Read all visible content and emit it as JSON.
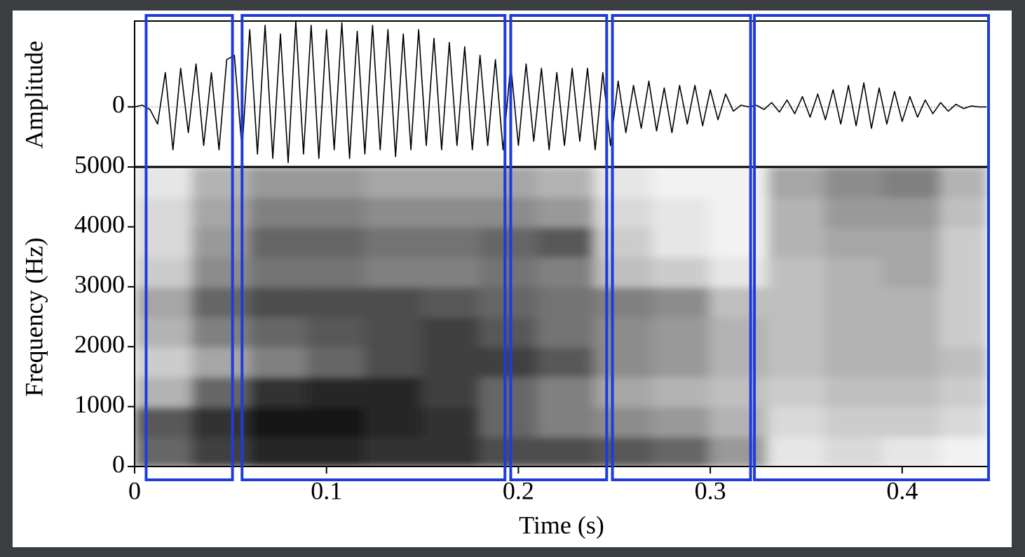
{
  "chart_data": [
    {
      "type": "line",
      "ylabel": "Amplitude",
      "color": "#000000",
      "xlim": [
        0,
        0.445
      ],
      "ylim": [
        -0.7,
        1
      ],
      "yticks": [
        0
      ],
      "x": [
        0,
        0.004,
        0.008,
        0.012,
        0.016,
        0.02,
        0.024,
        0.028,
        0.032,
        0.036,
        0.04,
        0.044,
        0.048,
        0.052,
        0.056,
        0.06,
        0.064,
        0.068,
        0.072,
        0.076,
        0.08,
        0.084,
        0.088,
        0.092,
        0.096,
        0.1,
        0.104,
        0.108,
        0.112,
        0.116,
        0.12,
        0.124,
        0.128,
        0.132,
        0.136,
        0.14,
        0.144,
        0.148,
        0.152,
        0.156,
        0.16,
        0.164,
        0.168,
        0.172,
        0.176,
        0.18,
        0.184,
        0.188,
        0.192,
        0.196,
        0.2,
        0.204,
        0.208,
        0.212,
        0.216,
        0.22,
        0.224,
        0.228,
        0.232,
        0.236,
        0.24,
        0.244,
        0.248,
        0.252,
        0.256,
        0.26,
        0.264,
        0.268,
        0.272,
        0.276,
        0.28,
        0.284,
        0.288,
        0.292,
        0.296,
        0.3,
        0.304,
        0.308,
        0.312,
        0.316,
        0.32,
        0.324,
        0.328,
        0.332,
        0.336,
        0.34,
        0.344,
        0.348,
        0.352,
        0.356,
        0.36,
        0.364,
        0.368,
        0.372,
        0.376,
        0.38,
        0.384,
        0.388,
        0.392,
        0.396,
        0.4,
        0.404,
        0.408,
        0.412,
        0.416,
        0.42,
        0.424,
        0.428,
        0.432,
        0.436,
        0.44,
        0.444
      ],
      "values": [
        0,
        0.02,
        -0.03,
        -0.2,
        0.4,
        -0.5,
        0.45,
        -0.3,
        0.5,
        -0.45,
        0.4,
        -0.5,
        0.55,
        0.6,
        -0.5,
        0.9,
        -0.55,
        0.95,
        -0.6,
        0.85,
        -0.65,
        1.0,
        -0.55,
        0.95,
        -0.6,
        0.9,
        -0.5,
        0.98,
        -0.6,
        0.88,
        -0.55,
        0.95,
        -0.5,
        0.9,
        -0.58,
        0.85,
        -0.5,
        0.9,
        -0.45,
        0.8,
        -0.5,
        0.75,
        -0.45,
        0.7,
        -0.5,
        0.6,
        -0.45,
        0.55,
        -0.5,
        0.5,
        -0.45,
        0.5,
        -0.4,
        0.45,
        -0.5,
        0.4,
        -0.45,
        0.45,
        -0.4,
        0.45,
        -0.5,
        0.4,
        -0.45,
        0.3,
        -0.3,
        0.25,
        -0.25,
        0.3,
        -0.28,
        0.22,
        -0.3,
        0.25,
        -0.2,
        0.25,
        -0.22,
        0.2,
        -0.15,
        0.15,
        -0.05,
        0.02,
        0,
        0.02,
        -0.03,
        0.05,
        -0.06,
        0.08,
        -0.08,
        0.12,
        -0.12,
        0.15,
        -0.15,
        0.2,
        -0.2,
        0.25,
        -0.22,
        0.28,
        -0.25,
        0.22,
        -0.2,
        0.18,
        -0.17,
        0.12,
        -0.12,
        0.08,
        -0.08,
        0.05,
        -0.05,
        0.03,
        -0.02,
        0.01,
        0,
        0
      ]
    },
    {
      "type": "heatmap",
      "xlabel": "Time (s)",
      "ylabel": "Frequency (Hz)",
      "xlim": [
        0,
        0.445
      ],
      "xticks": [
        0,
        0.1,
        0.2,
        0.3,
        0.4
      ],
      "ylim": [
        0,
        5000
      ],
      "yticks": [
        0,
        1000,
        2000,
        3000,
        4000,
        5000
      ],
      "xbins": [
        0,
        0.03,
        0.06,
        0.09,
        0.12,
        0.15,
        0.18,
        0.21,
        0.24,
        0.27,
        0.3,
        0.33,
        0.36,
        0.39,
        0.42,
        0.445
      ],
      "ybins": [
        0,
        500,
        1000,
        1500,
        2000,
        2500,
        3000,
        3500,
        4000,
        4500,
        5000
      ],
      "values": [
        [
          0.6,
          0.75,
          0.85,
          0.85,
          0.8,
          0.8,
          0.7,
          0.7,
          0.65,
          0.6,
          0.4,
          0.1,
          0.15,
          0.1,
          0.05
        ],
        [
          0.65,
          0.8,
          0.9,
          0.9,
          0.85,
          0.8,
          0.6,
          0.5,
          0.45,
          0.4,
          0.3,
          0.15,
          0.2,
          0.2,
          0.15
        ],
        [
          0.3,
          0.6,
          0.8,
          0.85,
          0.85,
          0.75,
          0.6,
          0.5,
          0.35,
          0.3,
          0.25,
          0.2,
          0.25,
          0.25,
          0.2
        ],
        [
          0.2,
          0.35,
          0.5,
          0.6,
          0.7,
          0.75,
          0.75,
          0.65,
          0.45,
          0.4,
          0.3,
          0.25,
          0.3,
          0.3,
          0.25
        ],
        [
          0.3,
          0.5,
          0.6,
          0.65,
          0.7,
          0.75,
          0.65,
          0.55,
          0.45,
          0.4,
          0.3,
          0.25,
          0.3,
          0.3,
          0.2
        ],
        [
          0.35,
          0.6,
          0.7,
          0.7,
          0.7,
          0.65,
          0.6,
          0.55,
          0.5,
          0.45,
          0.25,
          0.25,
          0.3,
          0.3,
          0.2
        ],
        [
          0.2,
          0.45,
          0.55,
          0.55,
          0.5,
          0.5,
          0.55,
          0.5,
          0.25,
          0.2,
          0.1,
          0.25,
          0.3,
          0.35,
          0.2
        ],
        [
          0.15,
          0.4,
          0.6,
          0.6,
          0.55,
          0.55,
          0.6,
          0.65,
          0.2,
          0.1,
          0.05,
          0.3,
          0.35,
          0.35,
          0.2
        ],
        [
          0.15,
          0.35,
          0.5,
          0.5,
          0.45,
          0.45,
          0.45,
          0.4,
          0.15,
          0.1,
          0.05,
          0.3,
          0.4,
          0.4,
          0.25
        ],
        [
          0.1,
          0.3,
          0.4,
          0.4,
          0.35,
          0.35,
          0.35,
          0.3,
          0.1,
          0.05,
          0.05,
          0.35,
          0.45,
          0.5,
          0.3
        ]
      ],
      "segment_color": "#1f3bdb",
      "segments": [
        {
          "start": 0.006,
          "end": 0.051
        },
        {
          "start": 0.056,
          "end": 0.193
        },
        {
          "start": 0.196,
          "end": 0.246
        },
        {
          "start": 0.249,
          "end": 0.321
        },
        {
          "start": 0.323,
          "end": 0.445
        }
      ]
    }
  ]
}
